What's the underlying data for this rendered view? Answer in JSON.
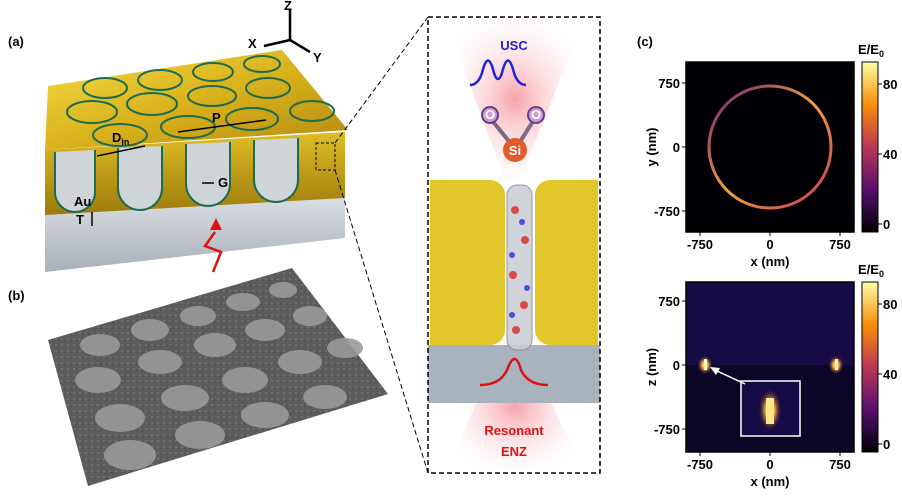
{
  "panels": {
    "a": {
      "label": "(a)",
      "axes": {
        "z": "Z",
        "x": "X",
        "y": "Y"
      },
      "labels": {
        "d": "D",
        "d_sub": "in",
        "p": "P",
        "g": "G",
        "au": "Au",
        "t": "T"
      }
    },
    "b": {
      "label": "(b)"
    },
    "inset": {
      "top": "USC",
      "atoms": {
        "o1": "O",
        "o2": "O",
        "si": "Si"
      },
      "bottom1": "Resonant",
      "bottom2": "ENZ"
    },
    "c": {
      "label": "(c)",
      "plots": [
        {
          "xlabel": "x (nm)",
          "ylabel": "y (nm)",
          "xticks": [
            -750,
            0,
            750
          ],
          "yticks": [
            750,
            0,
            -750
          ],
          "colorbar": {
            "title": "E/E",
            "title_sub": "0",
            "ticks": [
              80,
              40,
              0
            ]
          }
        },
        {
          "xlabel": "x (nm)",
          "ylabel": "z (nm)",
          "xticks": [
            -750,
            0,
            750
          ],
          "yticks": [
            750,
            0,
            -750
          ],
          "colorbar": {
            "title": "E/E",
            "title_sub": "0",
            "ticks": [
              80,
              40,
              0
            ]
          }
        }
      ]
    }
  }
}
